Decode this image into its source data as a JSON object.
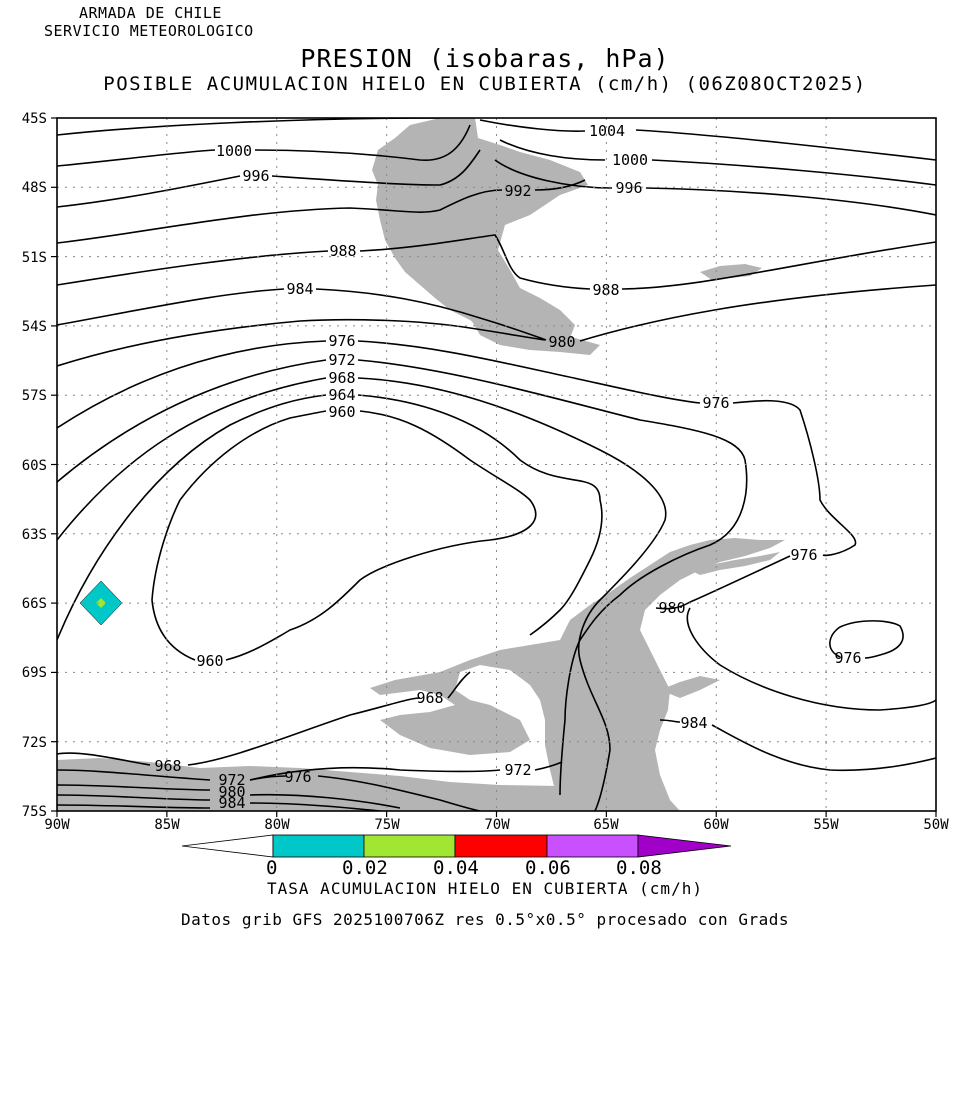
{
  "header": {
    "agency_line1": "ARMADA DE CHILE",
    "agency_line2": "SERVICIO METEOROLOGICO",
    "title": "PRESION (isobaras, hPa)",
    "subtitle": "POSIBLE ACUMULACION HIELO EN CUBIERTA (cm/h) (06Z08OCT2025)"
  },
  "map": {
    "lat_labels": [
      "45S",
      "48S",
      "51S",
      "54S",
      "57S",
      "60S",
      "63S",
      "66S",
      "69S",
      "72S",
      "75S"
    ],
    "lon_labels": [
      "90W",
      "85W",
      "80W",
      "75W",
      "70W",
      "65W",
      "60W",
      "55W",
      "50W"
    ],
    "land_color": "#b4b4b4",
    "isobar_color": "#000000",
    "isobar_labels": [
      "1004",
      "1000",
      "1000",
      "996",
      "996",
      "992",
      "988",
      "988",
      "984",
      "980",
      "976",
      "972",
      "968",
      "964",
      "960",
      "976",
      "976",
      "960",
      "980",
      "976",
      "968",
      "984",
      "972",
      "968",
      "972",
      "976",
      "980",
      "984"
    ]
  },
  "colorbar": {
    "colors": [
      "#00c8c8",
      "#a0e632",
      "#ff0000",
      "#c850ff",
      "#a000c8"
    ],
    "tick_labels": [
      "0",
      "0.02",
      "0.04",
      "0.06",
      "0.08"
    ],
    "title": "TASA ACUMULACION HIELO EN CUBIERTA (cm/h)"
  },
  "footer": "Datos grib GFS 2025100706Z res 0.5°x0.5° procesado con Grads"
}
